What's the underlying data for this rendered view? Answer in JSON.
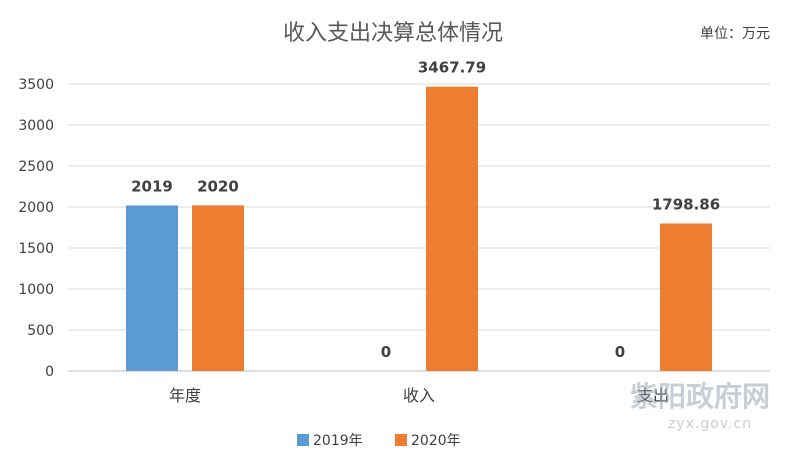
{
  "chart_data": {
    "type": "bar",
    "title": "收入支出决算总体情况",
    "unit_label": "单位：万元",
    "categories": [
      "年度",
      "收入",
      "支出"
    ],
    "series": [
      {
        "name": "2019年",
        "color": "#5B9BD5",
        "values": [
          2019,
          0,
          0
        ],
        "labels": [
          "2019",
          "0",
          "0"
        ]
      },
      {
        "name": "2020年",
        "color": "#ED7D31",
        "values": [
          2020,
          3467.79,
          1798.86
        ],
        "labels": [
          "2020",
          "3467.79",
          "1798.86"
        ]
      }
    ],
    "ylim": [
      0,
      3500
    ],
    "yticks": [
      0,
      500,
      1000,
      1500,
      2000,
      2500,
      3000,
      3500
    ],
    "grid": true,
    "legend_position": "bottom"
  },
  "watermark": {
    "text": "紫阳政府网",
    "subtext": "zyx.gov.cn"
  }
}
